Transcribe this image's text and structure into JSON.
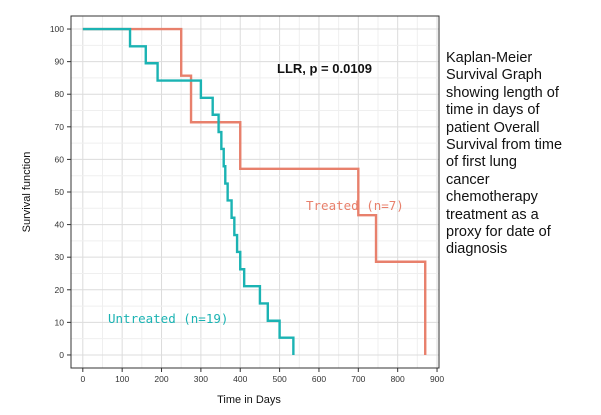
{
  "chart_data": {
    "type": "line",
    "xlabel": "Time in Days",
    "ylabel": "Survival function",
    "xlim": [
      -30,
      905
    ],
    "ylim": [
      -4,
      104
    ],
    "x_ticks": [
      0,
      100,
      200,
      300,
      400,
      500,
      600,
      700,
      800,
      900
    ],
    "y_ticks": [
      0,
      10,
      20,
      30,
      40,
      50,
      60,
      70,
      80,
      90,
      100
    ],
    "grid": true,
    "legend": "none",
    "annotation": "LLR, p = 0.0109",
    "series": [
      {
        "name": "Treated (n=7)",
        "color": "#e8806c",
        "step_x": [
          0,
          200,
          250,
          275,
          400,
          700,
          745,
          870,
          870
        ],
        "step_y": [
          100,
          100,
          85.7,
          71.4,
          57.1,
          42.9,
          28.6,
          14.3,
          0
        ]
      },
      {
        "name": "Untreated (n=19)",
        "color": "#1bb3b3",
        "step_x": [
          0,
          120,
          160,
          190,
          300,
          330,
          345,
          352,
          358,
          362,
          368,
          378,
          385,
          392,
          400,
          410,
          450,
          470,
          500,
          520,
          535
        ],
        "step_y": [
          100,
          94.7,
          89.5,
          84.2,
          78.9,
          73.7,
          68.4,
          63.2,
          57.9,
          52.6,
          47.4,
          42.1,
          36.8,
          31.6,
          26.3,
          21.1,
          15.8,
          10.5,
          5.3,
          5.3,
          0
        ]
      }
    ]
  },
  "caption_lines": [
    "Kaplan-Meier",
    "Survival  Graph",
    "showing length of",
    "time in days of",
    "patient Overall",
    "Survival  from time",
    "of first lung",
    "cancer",
    "chemotherapy",
    "treatment as a",
    "proxy for date of",
    "diagnosis"
  ]
}
